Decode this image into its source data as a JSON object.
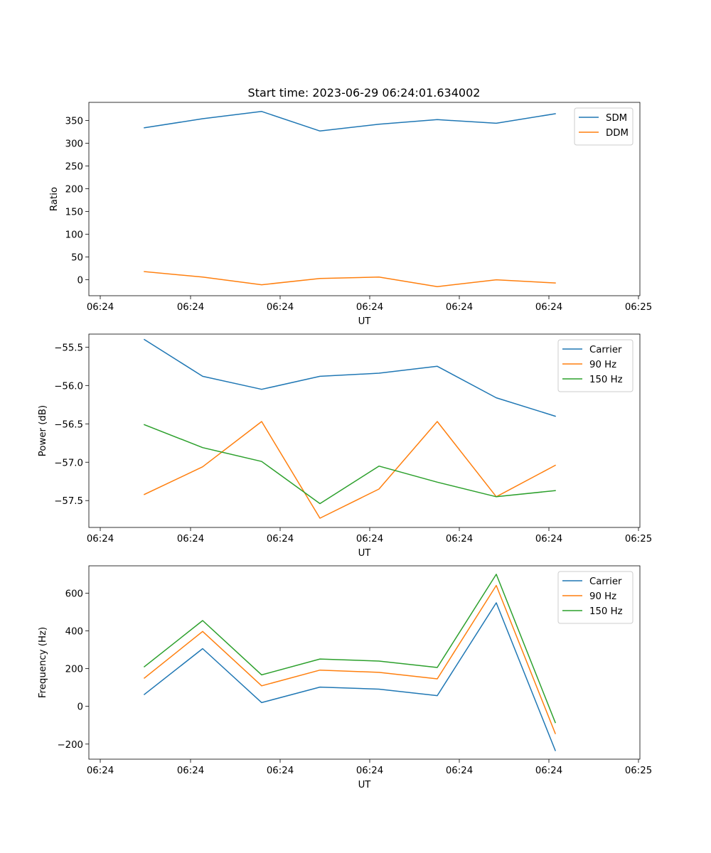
{
  "figure": {
    "title": "Start time: 2023-06-29 06:24:01.634002"
  },
  "colors": {
    "blue": "#1f77b4",
    "orange": "#ff7f0e",
    "green": "#2ca02c"
  },
  "chart_data": [
    {
      "type": "line",
      "title": "Start time: 2023-06-29 06:24:01.634002",
      "xlabel": "UT",
      "ylabel": "Ratio",
      "x_tick_labels": [
        "06:24",
        "06:24",
        "06:24",
        "06:24",
        "06:24",
        "06:24",
        "06:25"
      ],
      "x_points": 8,
      "ylim": [
        -35,
        390
      ],
      "yticks": [
        0,
        50,
        100,
        150,
        200,
        250,
        300,
        350
      ],
      "legend": "upper right",
      "series": [
        {
          "name": "SDM",
          "color": "#1f77b4",
          "values": [
            334,
            354,
            370,
            327,
            342,
            352,
            344,
            365
          ]
        },
        {
          "name": "DDM",
          "color": "#ff7f0e",
          "values": [
            18,
            6,
            -11,
            3,
            6,
            -15,
            0,
            -7
          ]
        }
      ]
    },
    {
      "type": "line",
      "xlabel": "UT",
      "ylabel": "Power (dB)",
      "x_tick_labels": [
        "06:24",
        "06:24",
        "06:24",
        "06:24",
        "06:24",
        "06:24",
        "06:25"
      ],
      "x_points": 8,
      "ylim": [
        -57.85,
        -55.33
      ],
      "yticks": [
        -55.5,
        -56.0,
        -56.5,
        -57.0,
        -57.5
      ],
      "yticks_text": [
        "−55.5",
        "−56.0",
        "−56.5",
        "−57.0",
        "−57.5"
      ],
      "legend": "upper right",
      "series": [
        {
          "name": "Carrier",
          "color": "#1f77b4",
          "values": [
            -55.4,
            -55.88,
            -56.05,
            -55.88,
            -55.84,
            -55.75,
            -56.16,
            -56.4
          ]
        },
        {
          "name": "90 Hz",
          "color": "#ff7f0e",
          "values": [
            -57.42,
            -57.06,
            -56.47,
            -57.73,
            -57.35,
            -56.47,
            -57.45,
            -57.04
          ]
        },
        {
          "name": "150 Hz",
          "color": "#2ca02c",
          "values": [
            -56.51,
            -56.81,
            -56.99,
            -57.54,
            -57.05,
            -57.26,
            -57.45,
            -57.37
          ]
        }
      ]
    },
    {
      "type": "line",
      "xlabel": "UT",
      "ylabel": "Frequency (Hz)",
      "x_tick_labels": [
        "06:24",
        "06:24",
        "06:24",
        "06:24",
        "06:24",
        "06:24",
        "06:25"
      ],
      "x_points": 8,
      "ylim": [
        -280,
        745
      ],
      "yticks": [
        -200,
        0,
        200,
        400,
        600
      ],
      "yticks_text": [
        "−200",
        "0",
        "200",
        "400",
        "600"
      ],
      "legend": "upper right",
      "series": [
        {
          "name": "Carrier",
          "color": "#1f77b4",
          "values": [
            63,
            306,
            20,
            102,
            91,
            57,
            549,
            -234
          ]
        },
        {
          "name": "90 Hz",
          "color": "#ff7f0e",
          "values": [
            150,
            397,
            109,
            192,
            180,
            146,
            641,
            -144
          ]
        },
        {
          "name": "150 Hz",
          "color": "#2ca02c",
          "values": [
            210,
            455,
            167,
            251,
            240,
            206,
            700,
            -86
          ]
        }
      ]
    }
  ]
}
